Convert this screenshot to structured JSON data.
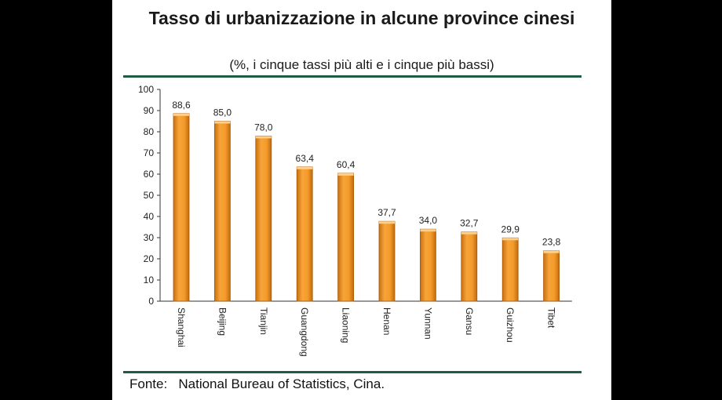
{
  "chart_data": {
    "type": "bar",
    "title": "Tasso di urbanizzazione in alcune province cinesi",
    "subtitle": "(%, i cinque tassi più alti e i cinque più bassi)",
    "categories": [
      "Shanghai",
      "Beijing",
      "Tianjin",
      "Guangdong",
      "Liaoning",
      "Henan",
      "Yunnan",
      "Gansu",
      "Guizhou",
      "Tibet"
    ],
    "values": [
      88.6,
      85.0,
      78.0,
      63.4,
      60.4,
      37.7,
      34.0,
      32.7,
      29.9,
      23.8
    ],
    "value_labels": [
      "88,6",
      "85,0",
      "78,0",
      "63,4",
      "60,4",
      "37,7",
      "34,0",
      "32,7",
      "29,9",
      "23,8"
    ],
    "yticks": [
      0,
      10,
      20,
      30,
      40,
      50,
      60,
      70,
      80,
      90,
      100
    ],
    "ylim": [
      0,
      100
    ],
    "xlabel": "",
    "ylabel": "",
    "grid": false,
    "bar_color": "#f39a2c",
    "bar_edge_color": "#a85a0a"
  },
  "source": {
    "label": "Fonte:",
    "text": "National Bureau of Statistics, Cina."
  },
  "colors": {
    "rule": "#1e5c44"
  }
}
